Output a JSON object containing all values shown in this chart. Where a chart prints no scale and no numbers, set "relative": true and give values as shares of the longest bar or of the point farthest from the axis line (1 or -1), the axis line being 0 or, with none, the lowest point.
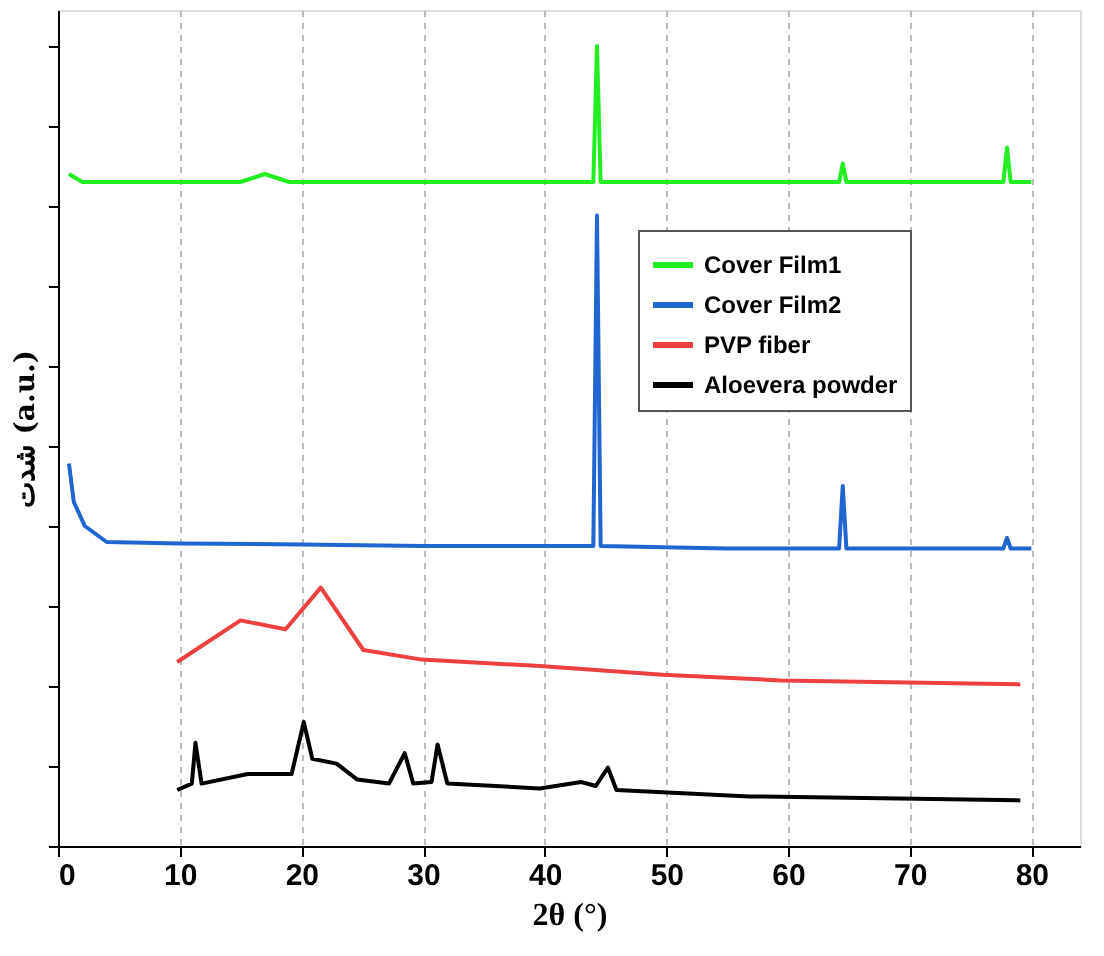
{
  "chart_data": {
    "type": "line",
    "relative": true,
    "xlabel": "2θ (°)",
    "ylabel": "شدت (a.u.)",
    "xlim": [
      0,
      84
    ],
    "xticks": [
      0,
      10,
      20,
      30,
      40,
      50,
      60,
      70,
      80
    ],
    "grid": "x",
    "legend": "top right",
    "tick_labels": "x",
    "line_style": "solid",
    "marker": "none",
    "series": [
      {
        "name": "Cover Film1",
        "color": "#22ee22",
        "x": [
          0.9,
          2,
          15,
          17,
          19,
          30,
          44.0,
          44.3,
          44.6,
          55,
          64.2,
          64.5,
          64.8,
          77.7,
          78,
          78.3,
          80
        ],
        "values": [
          0.84,
          0.83,
          0.83,
          0.84,
          0.83,
          0.83,
          0.83,
          1.0,
          0.83,
          0.83,
          0.83,
          0.853,
          0.83,
          0.83,
          0.873,
          0.83,
          0.83
        ]
      },
      {
        "name": "Cover Film2",
        "color": "#1f66d0",
        "x": [
          0.9,
          1.3,
          2.2,
          4,
          10,
          20,
          30,
          44.0,
          44.3,
          44.6,
          55,
          64.2,
          64.5,
          64.8,
          77.7,
          78,
          78.3,
          80
        ],
        "values": [
          0.478,
          0.43,
          0.4,
          0.38,
          0.378,
          0.377,
          0.375,
          0.375,
          0.788,
          0.375,
          0.372,
          0.372,
          0.45,
          0.372,
          0.372,
          0.385,
          0.372,
          0.372
        ]
      },
      {
        "name": "PVP fiber",
        "color": "#ee4040",
        "x": [
          9.8,
          15,
          18.7,
          21.6,
          25.1,
          29.9,
          39.6,
          49.7,
          59.4,
          79.1
        ],
        "values": [
          0.23,
          0.282,
          0.271,
          0.323,
          0.245,
          0.233,
          0.225,
          0.214,
          0.207,
          0.202
        ]
      },
      {
        "name": "Aloevera powder",
        "color": "#000000",
        "x": [
          9.8,
          11.0,
          11.3,
          11.8,
          15.6,
          19.2,
          20.2,
          20.9,
          22.9,
          24.6,
          27.2,
          28.5,
          29.2,
          30.7,
          31.2,
          32,
          39.6,
          43,
          44.2,
          45.2,
          45.9,
          56.8,
          79.1
        ],
        "values": [
          0.07,
          0.078,
          0.129,
          0.078,
          0.09,
          0.09,
          0.155,
          0.109,
          0.103,
          0.083,
          0.078,
          0.116,
          0.078,
          0.08,
          0.127,
          0.078,
          0.072,
          0.08,
          0.075,
          0.098,
          0.07,
          0.062,
          0.057
        ]
      }
    ]
  }
}
